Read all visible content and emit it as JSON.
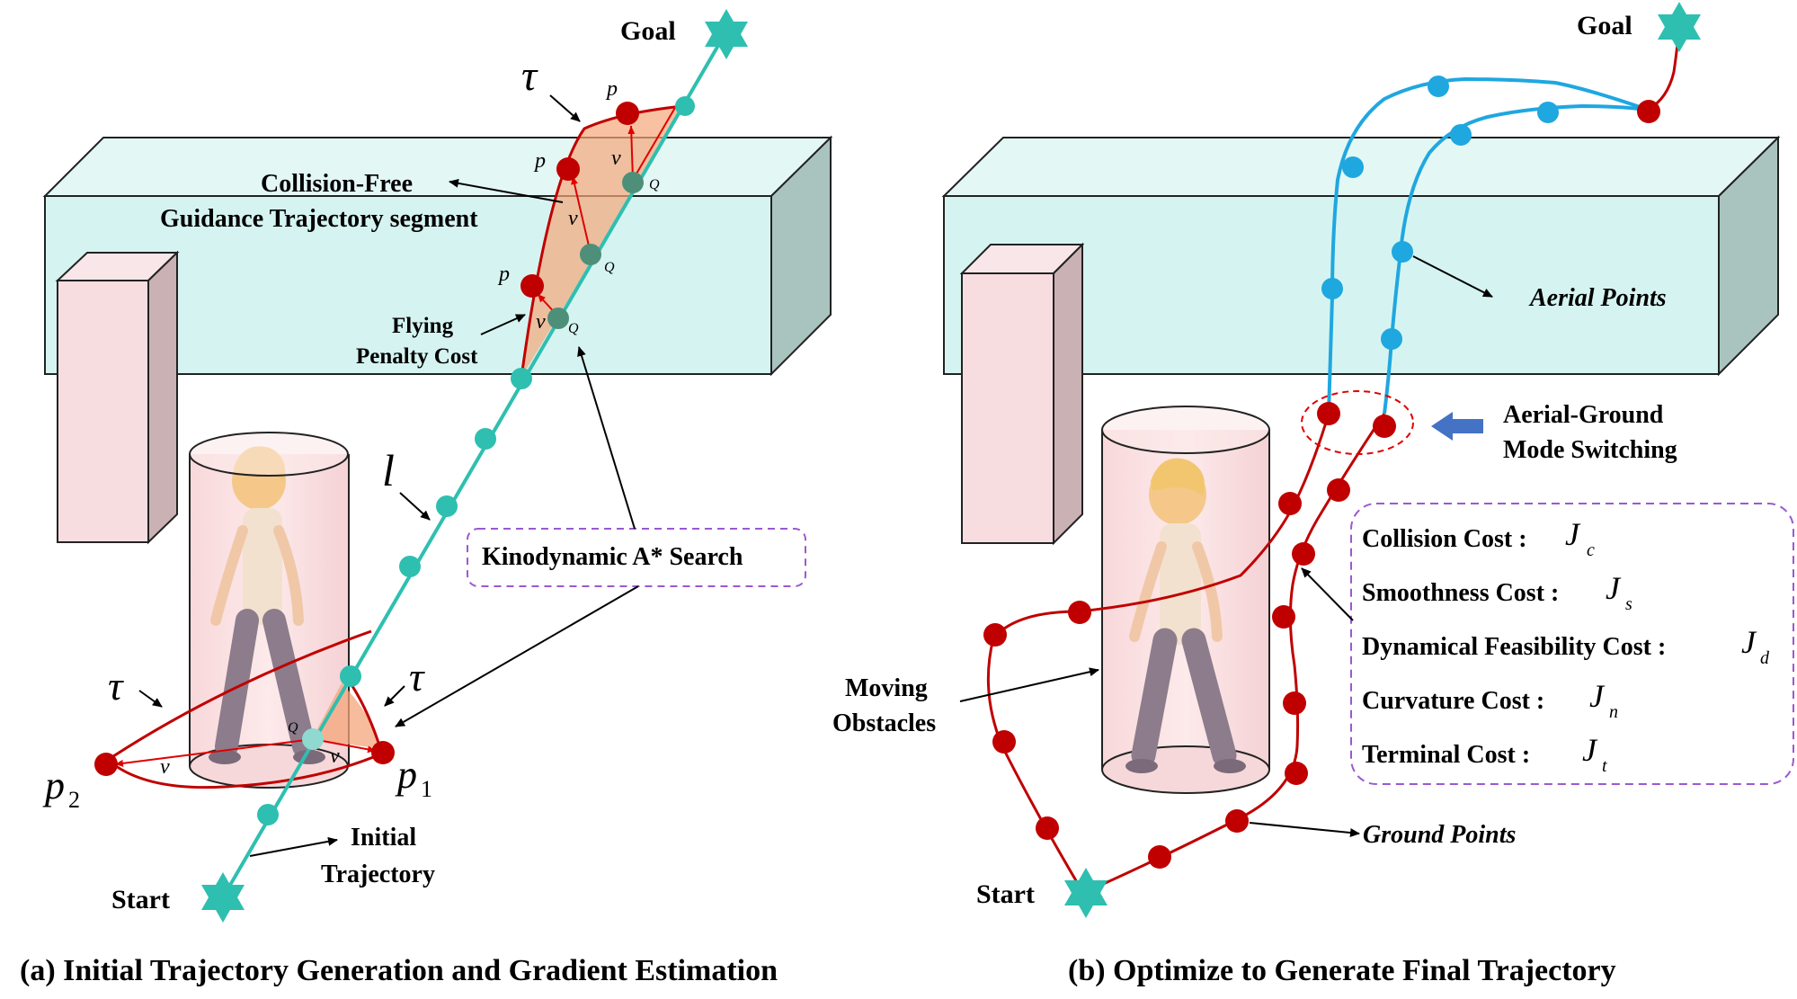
{
  "panel_a": {
    "caption": "(a) Initial Trajectory Generation and Gradient Estimation",
    "goal_label": "Goal",
    "start_label": "Start",
    "tau": "τ",
    "p": "p",
    "v": "v",
    "q": "Q",
    "l": "l",
    "p1": "p",
    "p1_sub": "1",
    "p2": "p",
    "p2_sub": "2",
    "collision_free_line1": "Collision-Free",
    "collision_free_line2": "Guidance Trajectory segment",
    "flying_line1": "Flying",
    "flying_line2": "Penalty Cost",
    "kinodynamic": "Kinodynamic A* Search",
    "initial_line1": "Initial",
    "initial_line2": "Trajectory"
  },
  "panel_b": {
    "caption": "(b) Optimize to Generate Final Trajectory",
    "goal_label": "Goal",
    "start_label": "Start",
    "aerial_points": "Aerial Points",
    "mode_switch_line1": "Aerial-Ground",
    "mode_switch_line2": "Mode Switching",
    "moving_line1": "Moving",
    "moving_line2": "Obstacles",
    "ground_points": "Ground Points",
    "costs": [
      {
        "label": "Collision Cost :",
        "sym": "J",
        "sub": "c"
      },
      {
        "label": "Smoothness Cost :",
        "sym": "J",
        "sub": "s"
      },
      {
        "label": "Dynamical Feasibility Cost :",
        "sym": "J",
        "sub": "d"
      },
      {
        "label": "Curvature Cost :",
        "sym": "J",
        "sub": "n"
      },
      {
        "label": "Terminal Cost :",
        "sym": "J",
        "sub": "t"
      }
    ]
  },
  "colors": {
    "teal": "#2ebfb0",
    "red_path": "#c00000",
    "red_dot": "#c00000",
    "blue_path": "#1fa7e0",
    "wall_front": "#d5f4f1",
    "wall_side": "#a9c4bf",
    "pillar": "#f7dde0",
    "label_purple": "#7030a0",
    "penalty_red": "#e8282a",
    "dashed_box": "#9b59d0",
    "switch_arrow": "#4472c4"
  }
}
